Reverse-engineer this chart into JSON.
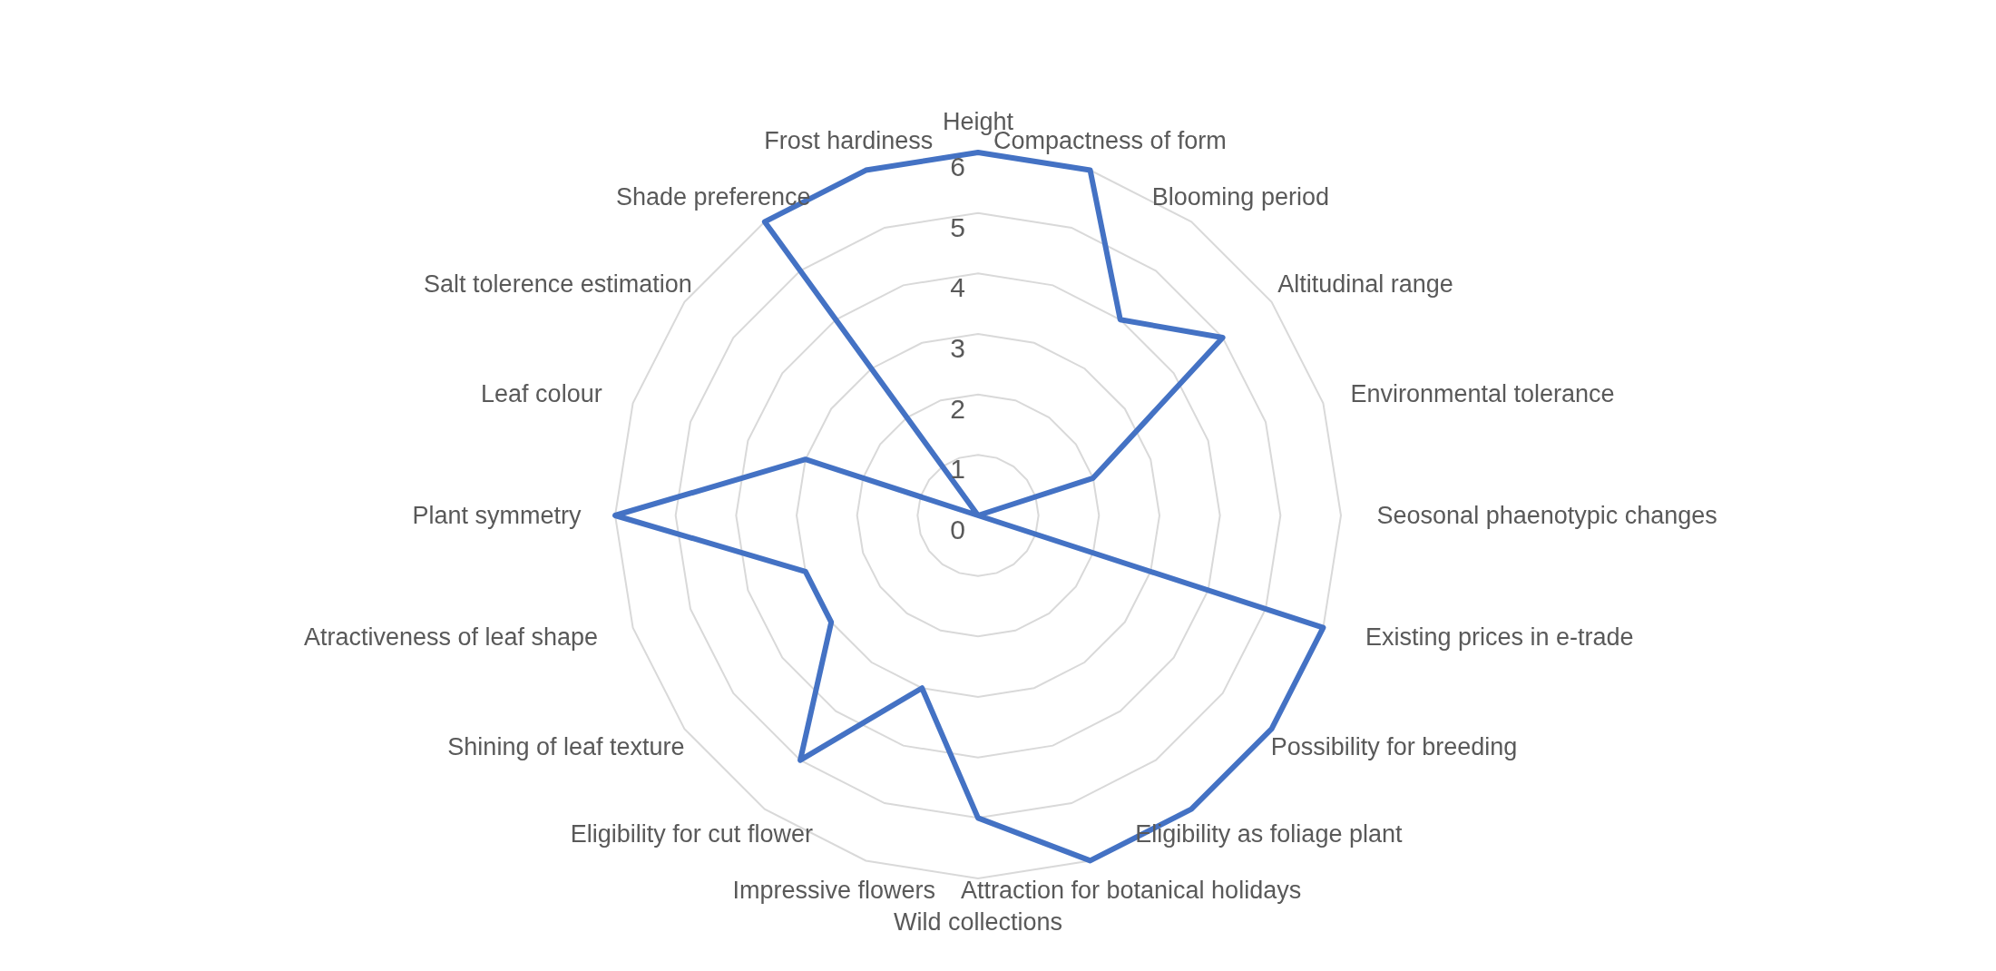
{
  "chart_data": {
    "type": "radar",
    "categories": [
      "Height",
      "Compactness of form",
      "Blooming period",
      "Altitudinal range",
      "Environmental tolerance",
      "Seosonal phaenotypic changes",
      "Existing prices in e-trade",
      "Possibility for breeding",
      "Eligibility as foliage plant",
      "Attraction for botanical holidays",
      "Wild collections",
      "Impressive flowers",
      "Eligibility for cut flower",
      "Shining of leaf texture",
      "Atractiveness of leaf shape",
      "Plant symmetry",
      "Leaf colour",
      "Salt tolerence estimation",
      "Shade preference",
      "Frost hardiness"
    ],
    "series": [
      {
        "color": "#4472c4",
        "values": [
          6,
          6,
          4,
          5,
          2,
          0,
          6,
          6,
          6,
          6,
          5,
          3,
          5,
          3,
          3,
          6,
          3,
          0,
          6,
          6
        ]
      }
    ],
    "ylim": [
      0,
      6
    ],
    "yticks": [
      0,
      1,
      2,
      3,
      4,
      5,
      6
    ],
    "grid": true,
    "marker": "none",
    "legend": false
  }
}
